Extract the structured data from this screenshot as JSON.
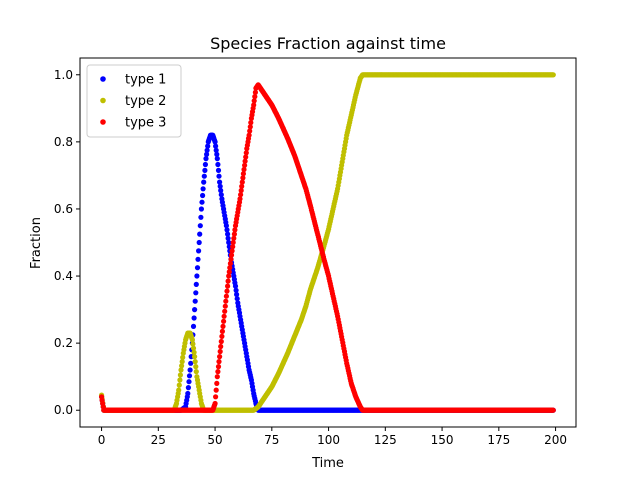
{
  "chart_data": {
    "type": "scatter",
    "title": "Species Fraction against time",
    "xlabel": "Time",
    "ylabel": "Fraction",
    "xlim": [
      -9.5,
      209
    ],
    "ylim": [
      -0.05,
      1.05
    ],
    "x_ticks": [
      0,
      25,
      50,
      75,
      100,
      125,
      150,
      175,
      200
    ],
    "x_tick_labels": [
      "0",
      "25",
      "50",
      "75",
      "100",
      "125",
      "150",
      "175",
      "200"
    ],
    "y_ticks": [
      0.0,
      0.2,
      0.4,
      0.6,
      0.8,
      1.0
    ],
    "y_tick_labels": [
      "0.0",
      "0.2",
      "0.4",
      "0.6",
      "0.8",
      "1.0"
    ],
    "grid": false,
    "legend_position": "top-left",
    "series": [
      {
        "name": "type 1",
        "color": "#0000ff",
        "points": [
          [
            0,
            0.04
          ],
          [
            1,
            0
          ],
          [
            10,
            0
          ],
          [
            20,
            0
          ],
          [
            30,
            0
          ],
          [
            35,
            0
          ],
          [
            37,
            0.01
          ],
          [
            38,
            0.05
          ],
          [
            39,
            0.12
          ],
          [
            40,
            0.2
          ],
          [
            41,
            0.3
          ],
          [
            42,
            0.4
          ],
          [
            43,
            0.5
          ],
          [
            44,
            0.6
          ],
          [
            45,
            0.68
          ],
          [
            46,
            0.75
          ],
          [
            47,
            0.8
          ],
          [
            48,
            0.82
          ],
          [
            49,
            0.82
          ],
          [
            50,
            0.8
          ],
          [
            51,
            0.75
          ],
          [
            52,
            0.68
          ],
          [
            53,
            0.63
          ],
          [
            54,
            0.59
          ],
          [
            55,
            0.55
          ],
          [
            56,
            0.5
          ],
          [
            57,
            0.45
          ],
          [
            58,
            0.41
          ],
          [
            59,
            0.37
          ],
          [
            60,
            0.32
          ],
          [
            61,
            0.28
          ],
          [
            62,
            0.24
          ],
          [
            63,
            0.2
          ],
          [
            64,
            0.16
          ],
          [
            65,
            0.12
          ],
          [
            66,
            0.09
          ],
          [
            67,
            0.05
          ],
          [
            68,
            0.02
          ],
          [
            69,
            0
          ],
          [
            75,
            0
          ],
          [
            85,
            0
          ],
          [
            100,
            0
          ],
          [
            110,
            0
          ],
          [
            115,
            0
          ],
          [
            125,
            0
          ],
          [
            150,
            0
          ],
          [
            175,
            0
          ],
          [
            199,
            0
          ]
        ]
      },
      {
        "name": "type 2",
        "color": "#bfbf00",
        "points": [
          [
            0,
            0.045
          ],
          [
            1,
            0
          ],
          [
            10,
            0
          ],
          [
            20,
            0
          ],
          [
            30,
            0
          ],
          [
            32,
            0
          ],
          [
            33,
            0.02
          ],
          [
            34,
            0.06
          ],
          [
            35,
            0.12
          ],
          [
            36,
            0.17
          ],
          [
            37,
            0.21
          ],
          [
            38,
            0.23
          ],
          [
            39,
            0.23
          ],
          [
            40,
            0.21
          ],
          [
            41,
            0.16
          ],
          [
            42,
            0.1
          ],
          [
            43,
            0.06
          ],
          [
            44,
            0.02
          ],
          [
            45,
            0
          ],
          [
            50,
            0
          ],
          [
            55,
            0
          ],
          [
            60,
            0
          ],
          [
            65,
            0
          ],
          [
            67,
            0
          ],
          [
            69,
            0.01
          ],
          [
            70,
            0.02
          ],
          [
            72,
            0.04
          ],
          [
            75,
            0.07
          ],
          [
            78,
            0.11
          ],
          [
            80,
            0.14
          ],
          [
            82,
            0.17
          ],
          [
            85,
            0.22
          ],
          [
            88,
            0.27
          ],
          [
            90,
            0.31
          ],
          [
            92,
            0.36
          ],
          [
            95,
            0.42
          ],
          [
            98,
            0.49
          ],
          [
            100,
            0.54
          ],
          [
            102,
            0.6
          ],
          [
            104,
            0.66
          ],
          [
            106,
            0.74
          ],
          [
            108,
            0.82
          ],
          [
            110,
            0.88
          ],
          [
            112,
            0.94
          ],
          [
            114,
            0.99
          ],
          [
            115,
            1.0
          ],
          [
            125,
            1.0
          ],
          [
            150,
            1.0
          ],
          [
            175,
            1.0
          ],
          [
            199,
            1.0
          ]
        ]
      },
      {
        "name": "type 3",
        "color": "#ff0000",
        "points": [
          [
            0,
            0.04
          ],
          [
            1,
            0
          ],
          [
            10,
            0
          ],
          [
            20,
            0
          ],
          [
            30,
            0
          ],
          [
            40,
            0
          ],
          [
            48,
            0
          ],
          [
            49,
            0
          ],
          [
            50,
            0.02
          ],
          [
            51,
            0.1
          ],
          [
            52,
            0.16
          ],
          [
            53,
            0.22
          ],
          [
            54,
            0.28
          ],
          [
            55,
            0.34
          ],
          [
            56,
            0.4
          ],
          [
            57,
            0.45
          ],
          [
            58,
            0.5
          ],
          [
            59,
            0.55
          ],
          [
            60,
            0.59
          ],
          [
            61,
            0.63
          ],
          [
            62,
            0.68
          ],
          [
            63,
            0.73
          ],
          [
            64,
            0.78
          ],
          [
            65,
            0.82
          ],
          [
            66,
            0.87
          ],
          [
            67,
            0.91
          ],
          [
            68,
            0.96
          ],
          [
            69,
            0.97
          ],
          [
            70,
            0.96
          ],
          [
            72,
            0.94
          ],
          [
            75,
            0.91
          ],
          [
            78,
            0.87
          ],
          [
            80,
            0.84
          ],
          [
            82,
            0.81
          ],
          [
            85,
            0.76
          ],
          [
            88,
            0.7
          ],
          [
            90,
            0.66
          ],
          [
            92,
            0.61
          ],
          [
            95,
            0.53
          ],
          [
            98,
            0.45
          ],
          [
            100,
            0.4
          ],
          [
            102,
            0.34
          ],
          [
            104,
            0.28
          ],
          [
            106,
            0.21
          ],
          [
            108,
            0.14
          ],
          [
            110,
            0.08
          ],
          [
            112,
            0.04
          ],
          [
            114,
            0.01
          ],
          [
            115,
            0
          ],
          [
            125,
            0
          ],
          [
            150,
            0
          ],
          [
            175,
            0
          ],
          [
            199,
            0
          ]
        ]
      }
    ]
  }
}
